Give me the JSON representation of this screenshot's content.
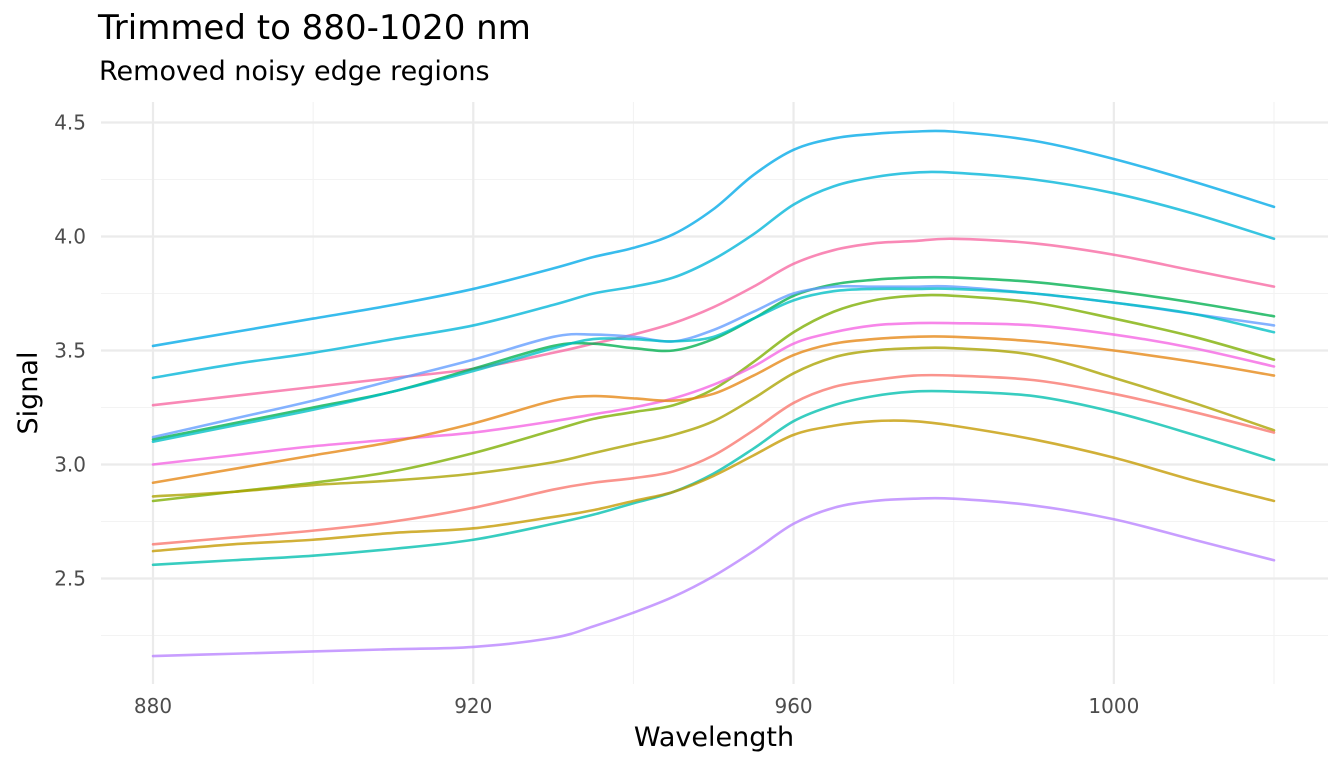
{
  "chart_data": {
    "type": "line",
    "title": "Trimmed to 880-1020 nm",
    "subtitle": "Removed noisy edge regions",
    "xlabel": "Wavelength",
    "ylabel": "Signal",
    "xlim": [
      880,
      1020
    ],
    "ylim": [
      2.05,
      4.55
    ],
    "x_ticks": [
      880,
      920,
      960,
      1000
    ],
    "y_ticks": [
      2.5,
      3.0,
      3.5,
      4.0,
      4.5
    ],
    "grid": true,
    "legend": "none",
    "x": [
      880,
      890,
      900,
      910,
      920,
      930,
      935,
      940,
      945,
      950,
      955,
      960,
      965,
      970,
      975,
      980,
      990,
      1000,
      1010,
      1020
    ],
    "series": [
      {
        "color": "#00a9e8",
        "values": [
          3.52,
          3.58,
          3.64,
          3.7,
          3.77,
          3.86,
          3.91,
          3.95,
          4.01,
          4.12,
          4.27,
          4.38,
          4.43,
          4.45,
          4.46,
          4.46,
          4.42,
          4.34,
          4.24,
          4.13
        ]
      },
      {
        "color": "#00b5d8",
        "values": [
          3.38,
          3.44,
          3.49,
          3.55,
          3.61,
          3.7,
          3.75,
          3.78,
          3.82,
          3.9,
          4.01,
          4.14,
          4.22,
          4.26,
          4.28,
          4.28,
          4.25,
          4.19,
          4.1,
          3.99
        ]
      },
      {
        "color": "#f768a1",
        "values": [
          3.26,
          3.3,
          3.34,
          3.38,
          3.42,
          3.49,
          3.53,
          3.57,
          3.62,
          3.69,
          3.78,
          3.88,
          3.94,
          3.97,
          3.98,
          3.99,
          3.97,
          3.92,
          3.85,
          3.78
        ]
      },
      {
        "color": "#00b050",
        "values": [
          3.11,
          3.18,
          3.25,
          3.32,
          3.42,
          3.52,
          3.53,
          3.51,
          3.5,
          3.55,
          3.64,
          3.74,
          3.79,
          3.81,
          3.82,
          3.82,
          3.8,
          3.76,
          3.71,
          3.65
        ]
      },
      {
        "color": "#619cff",
        "values": [
          3.12,
          3.2,
          3.28,
          3.37,
          3.46,
          3.56,
          3.57,
          3.56,
          3.54,
          3.59,
          3.67,
          3.75,
          3.78,
          3.78,
          3.78,
          3.78,
          3.75,
          3.71,
          3.66,
          3.61
        ]
      },
      {
        "color": "#00bfc4",
        "values": [
          3.1,
          3.17,
          3.24,
          3.32,
          3.41,
          3.51,
          3.55,
          3.55,
          3.54,
          3.56,
          3.64,
          3.72,
          3.76,
          3.77,
          3.77,
          3.77,
          3.75,
          3.71,
          3.66,
          3.58
        ]
      },
      {
        "color": "#7cae00",
        "values": [
          2.84,
          2.88,
          2.92,
          2.97,
          3.05,
          3.15,
          3.2,
          3.23,
          3.26,
          3.33,
          3.45,
          3.58,
          3.67,
          3.72,
          3.74,
          3.74,
          3.71,
          3.64,
          3.56,
          3.46
        ]
      },
      {
        "color": "#f564e3",
        "values": [
          3.0,
          3.04,
          3.08,
          3.11,
          3.14,
          3.19,
          3.22,
          3.25,
          3.29,
          3.35,
          3.43,
          3.53,
          3.58,
          3.61,
          3.62,
          3.62,
          3.61,
          3.57,
          3.51,
          3.43
        ]
      },
      {
        "color": "#e68613",
        "values": [
          2.92,
          2.98,
          3.04,
          3.1,
          3.18,
          3.28,
          3.3,
          3.29,
          3.28,
          3.31,
          3.39,
          3.48,
          3.53,
          3.55,
          3.56,
          3.56,
          3.54,
          3.5,
          3.45,
          3.39
        ]
      },
      {
        "color": "#abA300",
        "values": [
          2.86,
          2.88,
          2.91,
          2.93,
          2.96,
          3.01,
          3.05,
          3.09,
          3.13,
          3.19,
          3.29,
          3.4,
          3.47,
          3.5,
          3.51,
          3.51,
          3.48,
          3.38,
          3.27,
          3.15
        ]
      },
      {
        "color": "#f8766d",
        "values": [
          2.65,
          2.68,
          2.71,
          2.75,
          2.81,
          2.89,
          2.92,
          2.94,
          2.97,
          3.04,
          3.15,
          3.27,
          3.34,
          3.37,
          3.39,
          3.39,
          3.37,
          3.31,
          3.23,
          3.14
        ]
      },
      {
        "color": "#00bfae",
        "values": [
          2.56,
          2.58,
          2.6,
          2.63,
          2.67,
          2.74,
          2.78,
          2.83,
          2.88,
          2.96,
          3.07,
          3.19,
          3.26,
          3.3,
          3.32,
          3.32,
          3.3,
          3.23,
          3.13,
          3.02
        ]
      },
      {
        "color": "#c49a00",
        "values": [
          2.62,
          2.65,
          2.67,
          2.7,
          2.72,
          2.77,
          2.8,
          2.84,
          2.88,
          2.95,
          3.04,
          3.13,
          3.17,
          3.19,
          3.19,
          3.17,
          3.11,
          3.03,
          2.93,
          2.84
        ]
      },
      {
        "color": "#b983ff",
        "values": [
          2.16,
          2.17,
          2.18,
          2.19,
          2.2,
          2.24,
          2.29,
          2.35,
          2.42,
          2.51,
          2.62,
          2.74,
          2.81,
          2.84,
          2.85,
          2.85,
          2.82,
          2.76,
          2.67,
          2.58
        ]
      }
    ]
  }
}
